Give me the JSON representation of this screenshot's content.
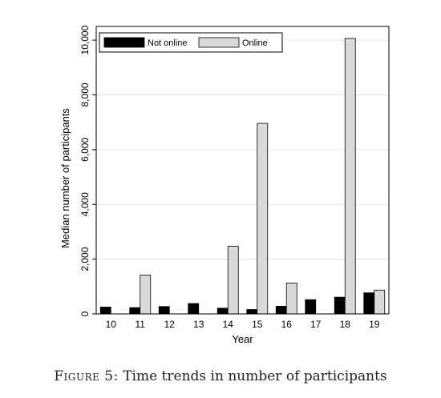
{
  "chart_data": {
    "type": "bar",
    "categories": [
      "10",
      "11",
      "12",
      "13",
      "14",
      "15",
      "16",
      "17",
      "18",
      "19"
    ],
    "series": [
      {
        "name": "Not online",
        "color": "#000000",
        "values": [
          250,
          230,
          270,
          380,
          210,
          160,
          280,
          520,
          610,
          770
        ]
      },
      {
        "name": "Online",
        "color": "#d9d9d9",
        "values": [
          null,
          1420,
          null,
          null,
          2470,
          6960,
          1130,
          null,
          10060,
          870
        ]
      }
    ],
    "xlabel": "Year",
    "ylabel": "Median number of participants",
    "ylim": [
      0,
      10500
    ],
    "yticks": [
      0,
      2000,
      4000,
      6000,
      8000,
      10000
    ],
    "ytick_labels": [
      "0",
      "2,000",
      "4,000",
      "6,000",
      "8,000",
      "10,000"
    ],
    "legend_position": "top-left",
    "grid": "horizontal"
  },
  "caption": {
    "label": "Figure 5:",
    "text": "Time trends in number of participants"
  }
}
